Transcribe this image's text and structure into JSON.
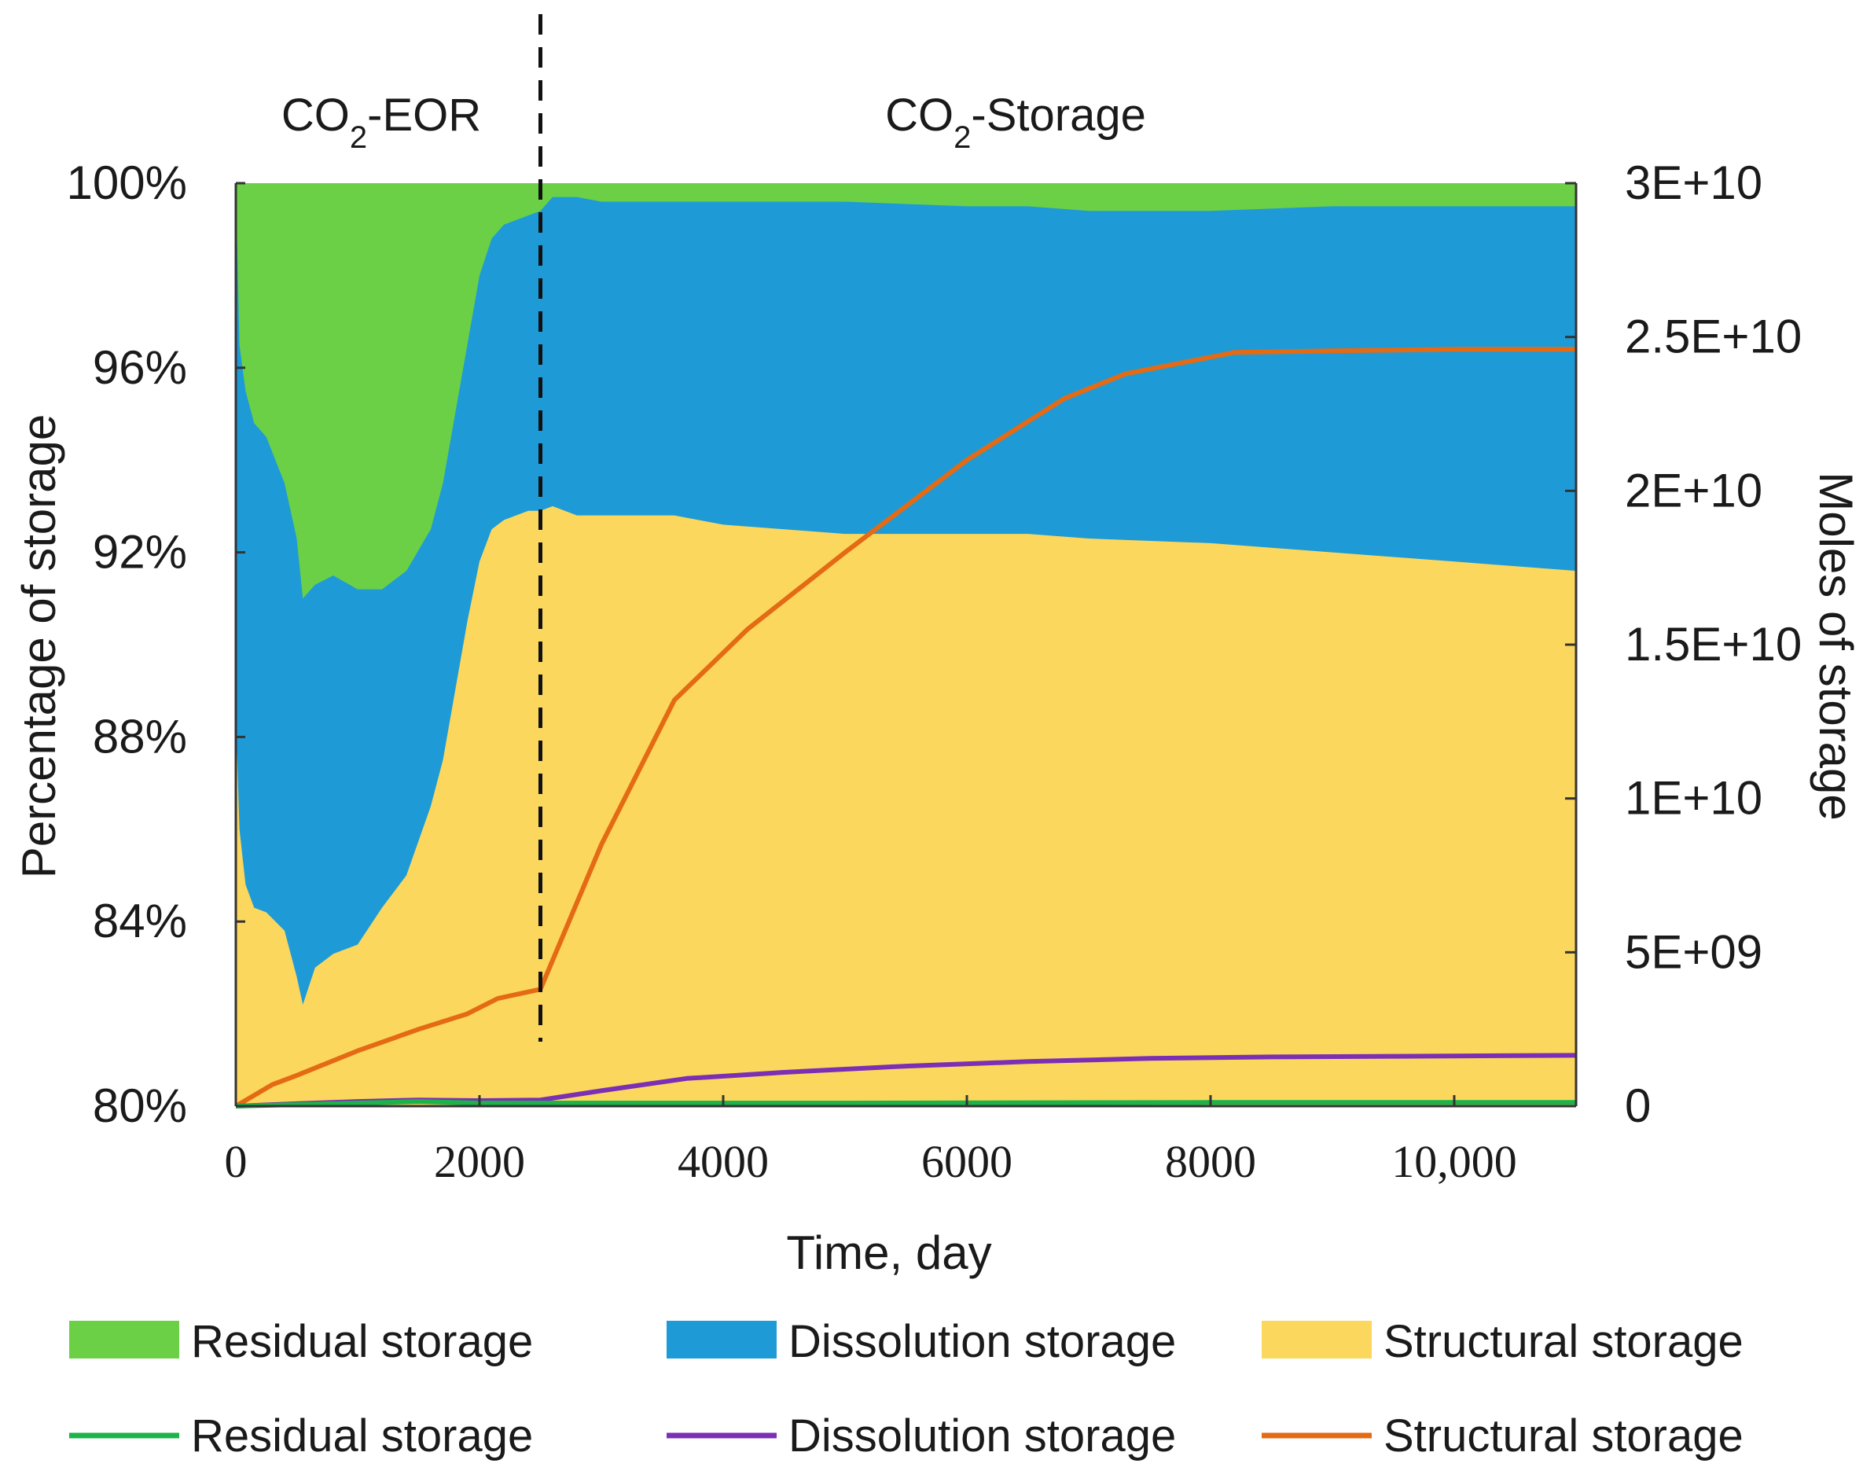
{
  "chart_data": {
    "type": "area",
    "xlabel": "Time, day",
    "ylabel": "Percentage of storage",
    "y2label": "Moles of storage",
    "xlim": [
      0,
      11000
    ],
    "ylim": [
      80,
      100
    ],
    "y2lim": [
      0,
      30000000000
    ],
    "x_ticks": [
      {
        "value": 0,
        "label": "0"
      },
      {
        "value": 2000,
        "label": "2000"
      },
      {
        "value": 4000,
        "label": "4000"
      },
      {
        "value": 6000,
        "label": "6000"
      },
      {
        "value": 8000,
        "label": "8000"
      },
      {
        "value": 10000,
        "label": "10,000"
      }
    ],
    "y_ticks": [
      {
        "value": 80,
        "label": "80%"
      },
      {
        "value": 84,
        "label": "84%"
      },
      {
        "value": 88,
        "label": "88%"
      },
      {
        "value": 92,
        "label": "92%"
      },
      {
        "value": 96,
        "label": "96%"
      },
      {
        "value": 100,
        "label": "100%"
      }
    ],
    "y2_ticks": [
      {
        "value": 0,
        "label": "0"
      },
      {
        "value": 5000000000,
        "label": "5E+09"
      },
      {
        "value": 10000000000,
        "label": "1E+10"
      },
      {
        "value": 15000000000,
        "label": "1.5E+10"
      },
      {
        "value": 20000000000,
        "label": "2E+10"
      },
      {
        "value": 25000000000,
        "label": "2.5E+10"
      },
      {
        "value": 30000000000,
        "label": "3E+10"
      }
    ],
    "phase_divider": {
      "x": 2500,
      "left": {
        "prefix": "CO",
        "sub": "2",
        "suffix": "-EOR"
      },
      "right": {
        "prefix": "CO",
        "sub": "2",
        "suffix": "-Storage"
      }
    },
    "x": [
      0,
      30,
      80,
      150,
      250,
      400,
      500,
      550,
      650,
      800,
      1000,
      1200,
      1400,
      1600,
      1700,
      1800,
      1900,
      2000,
      2100,
      2200,
      2400,
      2500,
      2600,
      2800,
      3000,
      3300,
      3600,
      4000,
      5000,
      6000,
      6500,
      7000,
      8000,
      9000,
      10000,
      11000
    ],
    "area_series": [
      {
        "name": "Structural storage",
        "color": "#fcd75e",
        "upper_percent": [
          88.5,
          86.0,
          84.8,
          84.3,
          84.2,
          83.8,
          82.8,
          82.2,
          83.0,
          83.3,
          83.5,
          84.3,
          85.0,
          86.5,
          87.5,
          89.0,
          90.5,
          91.8,
          92.5,
          92.7,
          92.9,
          92.9,
          93.0,
          92.8,
          92.8,
          92.8,
          92.8,
          92.6,
          92.4,
          92.4,
          92.4,
          92.3,
          92.2,
          92.0,
          91.8,
          91.6
        ]
      },
      {
        "name": "Dissolution storage",
        "color": "#1e9bd7",
        "upper_percent": [
          100.0,
          96.5,
          95.5,
          94.8,
          94.5,
          93.5,
          92.3,
          91.0,
          91.3,
          91.5,
          91.2,
          91.2,
          91.6,
          92.5,
          93.5,
          95.0,
          96.5,
          98.0,
          98.8,
          99.1,
          99.3,
          99.4,
          99.7,
          99.7,
          99.6,
          99.6,
          99.6,
          99.6,
          99.6,
          99.5,
          99.5,
          99.4,
          99.4,
          99.5,
          99.5,
          99.5
        ]
      },
      {
        "name": "Residual storage",
        "color": "#6cd046",
        "upper_percent": [
          100,
          100,
          100,
          100,
          100,
          100,
          100,
          100,
          100,
          100,
          100,
          100,
          100,
          100,
          100,
          100,
          100,
          100,
          100,
          100,
          100,
          100,
          100,
          100,
          100,
          100,
          100,
          100,
          100,
          100,
          100,
          100,
          100,
          100,
          100,
          100
        ]
      }
    ],
    "line_series": [
      {
        "name": "Structural storage",
        "color": "#e46a14",
        "x": [
          0,
          300,
          500,
          1000,
          1500,
          1900,
          2150,
          2500,
          3000,
          3600,
          4200,
          5000,
          6000,
          6800,
          7300,
          8200,
          9000,
          10000,
          11000
        ],
        "values": [
          0,
          700000000,
          1000000000,
          1800000000,
          2500000000,
          3000000000,
          3500000000,
          3800000000,
          8500000000,
          13200000000,
          15500000000,
          18000000000,
          21000000000,
          23000000000,
          23800000000,
          24500000000,
          24550000000,
          24600000000,
          24600000000
        ]
      },
      {
        "name": "Dissolution storage",
        "color": "#7b2fb5",
        "x": [
          0,
          500,
          1000,
          1500,
          2000,
          2500,
          3000,
          3700,
          4500,
          5500,
          6500,
          7500,
          8500,
          9500,
          11000
        ],
        "values": [
          0,
          80000000,
          150000000,
          200000000,
          180000000,
          200000000,
          500000000,
          900000000,
          1100000000,
          1300000000,
          1450000000,
          1550000000,
          1600000000,
          1620000000,
          1650000000
        ]
      },
      {
        "name": "Residual storage",
        "color": "#1bb34a",
        "x": [
          0,
          500,
          1000,
          1500,
          2000,
          2500,
          3000,
          5000,
          8000,
          11000
        ],
        "values": [
          0,
          50000000,
          100000000,
          150000000,
          100000000,
          100000000,
          100000000,
          100000000,
          120000000,
          120000000
        ]
      }
    ],
    "legend": {
      "placement": "bottom",
      "area_entries": [
        {
          "label": "Residual storage",
          "color": "#6cd046"
        },
        {
          "label": "Dissolution storage",
          "color": "#1e9bd7"
        },
        {
          "label": "Structural storage",
          "color": "#fcd75e"
        }
      ],
      "line_entries": [
        {
          "label": "Residual storage",
          "color": "#1bb34a"
        },
        {
          "label": "Dissolution storage",
          "color": "#7b2fb5"
        },
        {
          "label": "Structural storage",
          "color": "#e46a14"
        }
      ]
    }
  }
}
